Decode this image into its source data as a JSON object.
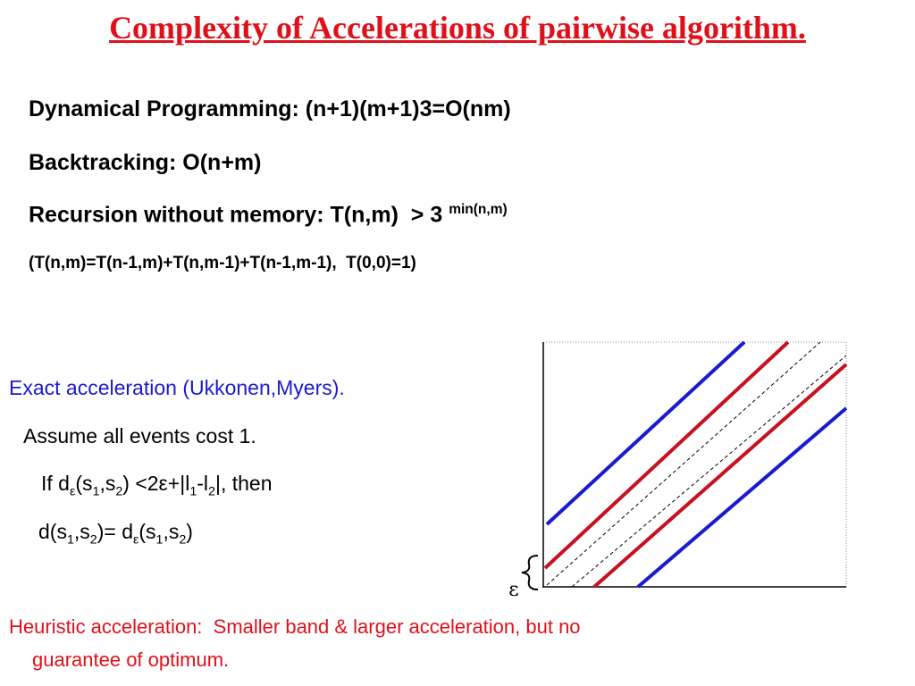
{
  "title": "Complexity of Accelerations of pairwise algorithm.",
  "complexity": [
    [
      "Dynamical Programming: (n+1)(m+1)3=O(nm)"
    ],
    [
      "Backtracking: O(n+m)"
    ],
    [
      "Recursion without memory: T(n,m)  > 3 ",
      "min(n,m)"
    ]
  ],
  "recurrence": "(T(n,m)=T(n-1,m)+T(n,m-1)+T(n-1,m-1),  T(0,0)=1)",
  "exact": [
    [
      "Exact acceleration (Ukkonen,Myers)."
    ],
    [
      "Assume all events cost 1."
    ],
    [
      "If d",
      "ε",
      "(s",
      "1",
      ",s",
      "2",
      ") <2ε+|l",
      "1",
      "-l",
      "2",
      "|, then"
    ],
    [
      "d(s",
      "1",
      ",s",
      "2",
      ")= d",
      "ε",
      "(s",
      "1",
      ",s",
      "2",
      ")"
    ]
  ],
  "heuristic": [
    "Heuristic acceleration:  Smaller band & larger acceleration, but no",
    "guarantee of optimum."
  ],
  "diagram": {
    "band_label": "ε"
  }
}
